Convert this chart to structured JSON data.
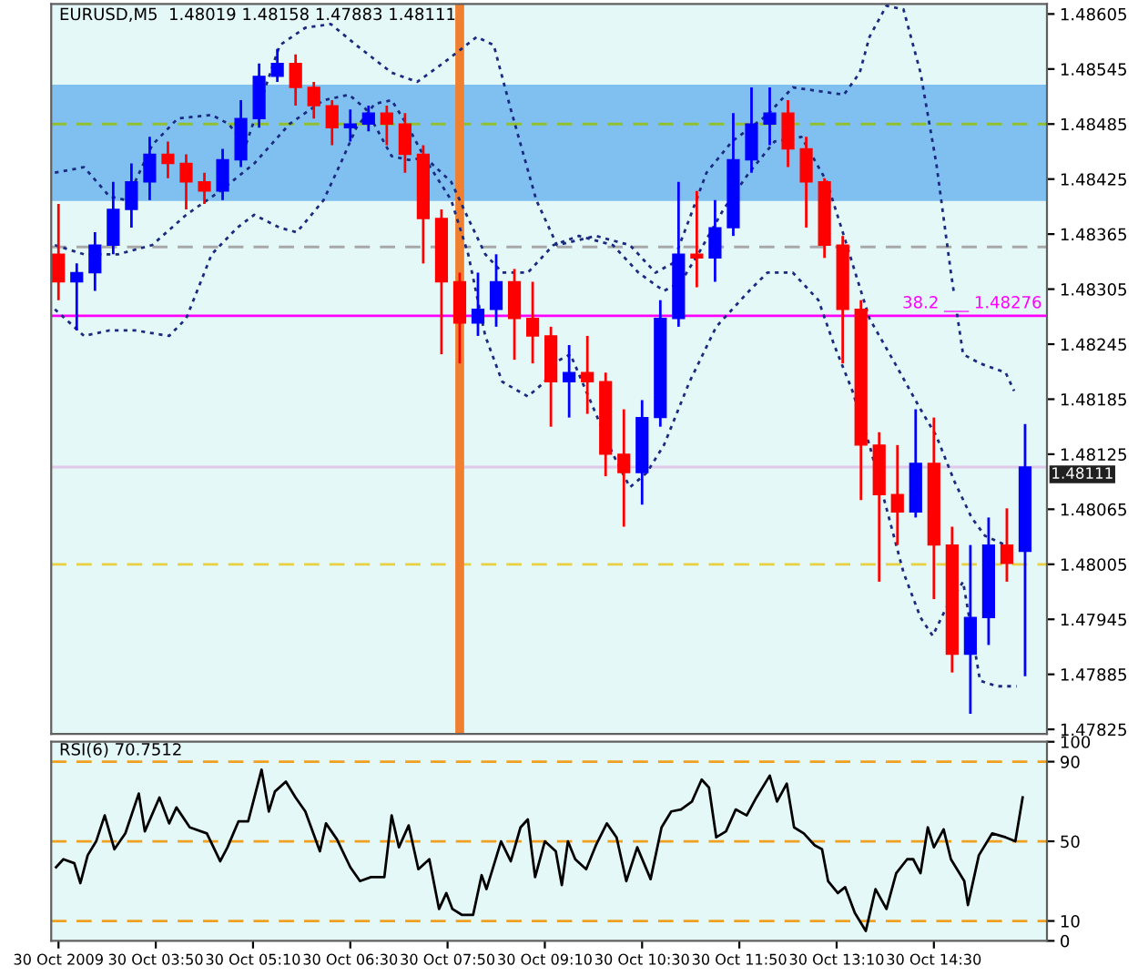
{
  "chart_data": [
    {
      "type": "candlestick",
      "title": "EURUSD,M5  1.48019 1.48158 1.47883 1.48111",
      "x": [
        "2009-10-30T02:30",
        "2009-10-30T02:45",
        "2009-10-30T03:00",
        "2009-10-30T03:15",
        "2009-10-30T03:30",
        "2009-10-30T03:45",
        "2009-10-30T04:00",
        "2009-10-30T04:15",
        "2009-10-30T04:30",
        "2009-10-30T04:45",
        "2009-10-30T05:00",
        "2009-10-30T05:15",
        "2009-10-30T05:30",
        "2009-10-30T05:45",
        "2009-10-30T06:00",
        "2009-10-30T06:15",
        "2009-10-30T06:30",
        "2009-10-30T06:45",
        "2009-10-30T07:00",
        "2009-10-30T07:15",
        "2009-10-30T07:30",
        "2009-10-30T07:45",
        "2009-10-30T08:00",
        "2009-10-30T08:15",
        "2009-10-30T08:30",
        "2009-10-30T08:45",
        "2009-10-30T09:00",
        "2009-10-30T09:15",
        "2009-10-30T09:30",
        "2009-10-30T09:45",
        "2009-10-30T10:00",
        "2009-10-30T10:15",
        "2009-10-30T10:30",
        "2009-10-30T10:45",
        "2009-10-30T11:00",
        "2009-10-30T11:15",
        "2009-10-30T11:30",
        "2009-10-30T11:45",
        "2009-10-30T12:00",
        "2009-10-30T12:15",
        "2009-10-30T12:30",
        "2009-10-30T12:45",
        "2009-10-30T13:00",
        "2009-10-30T13:15",
        "2009-10-30T13:30",
        "2009-10-30T13:45",
        "2009-10-30T14:00",
        "2009-10-30T14:15",
        "2009-10-30T14:30",
        "2009-10-30T14:45",
        "2009-10-30T15:00",
        "2009-10-30T15:15",
        "2009-10-30T15:30",
        "2009-10-30T15:45"
      ],
      "ohlc": [
        [
          1.48343,
          1.48398,
          1.48293,
          1.48313
        ],
        [
          1.48313,
          1.48333,
          1.4826,
          1.48323
        ],
        [
          1.48323,
          1.48367,
          1.48303,
          1.48353
        ],
        [
          1.48353,
          1.48422,
          1.48343,
          1.48392
        ],
        [
          1.48392,
          1.48442,
          1.48372,
          1.48422
        ],
        [
          1.48422,
          1.48471,
          1.48402,
          1.48452
        ],
        [
          1.48452,
          1.48466,
          1.48426,
          1.48442
        ],
        [
          1.48442,
          1.48452,
          1.48392,
          1.48422
        ],
        [
          1.48422,
          1.48432,
          1.48398,
          1.48412
        ],
        [
          1.48412,
          1.48458,
          1.48402,
          1.48446
        ],
        [
          1.48446,
          1.48511,
          1.48438,
          1.48491
        ],
        [
          1.48491,
          1.48551,
          1.48481,
          1.48537
        ],
        [
          1.48537,
          1.48567,
          1.48531,
          1.48551
        ],
        [
          1.48551,
          1.48561,
          1.48505,
          1.48525
        ],
        [
          1.48525,
          1.48531,
          1.48491,
          1.48505
        ],
        [
          1.48505,
          1.48511,
          1.48462,
          1.48481
        ],
        [
          1.48481,
          1.48501,
          1.48466,
          1.48485
        ],
        [
          1.48485,
          1.48505,
          1.48477,
          1.48497
        ],
        [
          1.48497,
          1.48505,
          1.48462,
          1.48485
        ],
        [
          1.48485,
          1.48497,
          1.48432,
          1.48452
        ],
        [
          1.48452,
          1.48462,
          1.48333,
          1.48382
        ],
        [
          1.48382,
          1.48392,
          1.48234,
          1.48313
        ],
        [
          1.48313,
          1.48323,
          1.48224,
          1.48268
        ],
        [
          1.48268,
          1.48323,
          1.48254,
          1.48283
        ],
        [
          1.48283,
          1.48343,
          1.48264,
          1.48313
        ],
        [
          1.48313,
          1.48327,
          1.48228,
          1.48273
        ],
        [
          1.48273,
          1.48313,
          1.48224,
          1.48254
        ],
        [
          1.48254,
          1.48264,
          1.48155,
          1.48204
        ],
        [
          1.48204,
          1.48244,
          1.48165,
          1.48214
        ],
        [
          1.48214,
          1.48254,
          1.48169,
          1.48204
        ],
        [
          1.48204,
          1.48214,
          1.48101,
          1.48125
        ],
        [
          1.48125,
          1.48174,
          1.48046,
          1.48105
        ],
        [
          1.48105,
          1.48184,
          1.4807,
          1.48165
        ],
        [
          1.48165,
          1.48293,
          1.48155,
          1.48273
        ],
        [
          1.48273,
          1.48422,
          1.48264,
          1.48343
        ],
        [
          1.48343,
          1.48412,
          1.48307,
          1.48339
        ],
        [
          1.48339,
          1.48402,
          1.48313,
          1.48372
        ],
        [
          1.48372,
          1.48497,
          1.48363,
          1.48446
        ],
        [
          1.48446,
          1.48525,
          1.48432,
          1.48485
        ],
        [
          1.48485,
          1.48525,
          1.48462,
          1.48497
        ],
        [
          1.48497,
          1.48511,
          1.48438,
          1.48458
        ],
        [
          1.48458,
          1.48471,
          1.48372,
          1.48422
        ],
        [
          1.48422,
          1.48426,
          1.48339,
          1.48353
        ],
        [
          1.48353,
          1.48363,
          1.48224,
          1.48283
        ],
        [
          1.48283,
          1.48293,
          1.48075,
          1.48135
        ],
        [
          1.48135,
          1.48149,
          1.47986,
          1.48081
        ],
        [
          1.48081,
          1.48135,
          1.48026,
          1.48062
        ],
        [
          1.48062,
          1.48174,
          1.48056,
          1.48115
        ],
        [
          1.48115,
          1.48165,
          1.47967,
          1.48026
        ],
        [
          1.48026,
          1.48046,
          1.47887,
          1.47907
        ],
        [
          1.47907,
          1.48026,
          1.47842,
          1.47947
        ],
        [
          1.47947,
          1.48056,
          1.47917,
          1.48026
        ],
        [
          1.48026,
          1.48066,
          1.47986,
          1.48006
        ],
        [
          1.48019,
          1.48158,
          1.47883,
          1.48111
        ]
      ],
      "colors": [
        "#ff0000",
        "#0000ff",
        "#0000ff",
        "#0000ff",
        "#0000ff",
        "#0000ff",
        "#ff0000",
        "#ff0000",
        "#ff0000",
        "#0000ff",
        "#0000ff",
        "#0000ff",
        "#0000ff",
        "#ff0000",
        "#ff0000",
        "#ff0000",
        "#0000ff",
        "#0000ff",
        "#ff0000",
        "#ff0000",
        "#ff0000",
        "#ff0000",
        "#ff0000",
        "#0000ff",
        "#0000ff",
        "#ff0000",
        "#ff0000",
        "#ff0000",
        "#0000ff",
        "#ff0000",
        "#ff0000",
        "#ff0000",
        "#0000ff",
        "#0000ff",
        "#0000ff",
        "#ff0000",
        "#0000ff",
        "#0000ff",
        "#0000ff",
        "#0000ff",
        "#ff0000",
        "#ff0000",
        "#ff0000",
        "#ff0000",
        "#ff0000",
        "#ff0000",
        "#ff0000",
        "#0000ff",
        "#ff0000",
        "#ff0000",
        "#0000ff",
        "#0000ff",
        "#ff0000",
        "#0000ff"
      ],
      "series": [
        {
          "type": "line",
          "color": "#1a2a80",
          "line_style": "dotted",
          "x": [
            "2009-10-30T02:27",
            "2009-10-30T02:51",
            "2009-10-30T03:12",
            "2009-10-30T03:26",
            "2009-10-30T03:47",
            "2009-10-30T04:08",
            "2009-10-30T04:36",
            "2009-10-30T04:50",
            "2009-10-30T05:04",
            "2009-10-30T05:32",
            "2009-10-30T05:53",
            "2009-10-30T06:14",
            "2009-10-30T06:35",
            "2009-10-30T07:04",
            "2009-10-30T07:25",
            "2009-10-30T07:46",
            "2009-10-30T08:14",
            "2009-10-30T08:28",
            "2009-10-30T08:42",
            "2009-10-30T09:03",
            "2009-10-30T09:20",
            "2009-10-30T09:52",
            "2009-10-30T10:20",
            "2009-10-30T10:41",
            "2009-10-30T10:55",
            "2009-10-30T11:09",
            "2009-10-30T11:23",
            "2009-10-30T11:44",
            "2009-10-30T12:13",
            "2009-10-30T12:34",
            "2009-10-30T12:55",
            "2009-10-30T13:16",
            "2009-10-30T13:29",
            "2009-10-30T13:37",
            "2009-10-30T13:51",
            "2009-10-30T14:05",
            "2009-10-30T14:19",
            "2009-10-30T14:32",
            "2009-10-30T14:44",
            "2009-10-30T14:54",
            "2009-10-30T15:08",
            "2009-10-30T15:29",
            "2009-10-30T15:36"
          ],
          "values": [
            1.48432,
            1.48438,
            1.48406,
            1.48402,
            1.48462,
            1.48491,
            1.48495,
            1.48485,
            1.48462,
            1.48571,
            1.4859,
            1.48594,
            1.48571,
            1.48541,
            1.48531,
            1.48551,
            1.4858,
            1.48571,
            1.48501,
            1.48402,
            1.48353,
            1.48363,
            1.48353,
            1.48323,
            1.48333,
            1.48382,
            1.48432,
            1.48466,
            1.48495,
            1.48525,
            1.48521,
            1.48517,
            1.48541,
            1.4858,
            1.48614,
            1.4861,
            1.48541,
            1.48442,
            1.48323,
            1.48234,
            1.48224,
            1.48214,
            1.48194
          ]
        },
        {
          "type": "line",
          "color": "#1a2a80",
          "line_style": "dotted",
          "x": [
            "2009-10-30T02:27",
            "2009-10-30T02:51",
            "2009-10-30T03:19",
            "2009-10-30T03:47",
            "2009-10-30T04:15",
            "2009-10-30T04:43",
            "2009-10-30T05:11",
            "2009-10-30T05:40",
            "2009-10-30T06:08",
            "2009-10-30T06:29",
            "2009-10-30T06:43",
            "2009-10-30T07:04",
            "2009-10-30T07:18",
            "2009-10-30T07:32",
            "2009-10-30T07:53",
            "2009-10-30T08:07",
            "2009-10-30T08:21",
            "2009-10-30T08:35",
            "2009-10-30T08:56",
            "2009-10-30T09:17",
            "2009-10-30T09:38",
            "2009-10-30T10:06",
            "2009-10-30T10:27",
            "2009-10-30T10:48",
            "2009-10-30T11:02",
            "2009-10-30T11:16",
            "2009-10-30T11:37",
            "2009-10-30T11:58",
            "2009-10-30T12:19",
            "2009-10-30T12:41",
            "2009-10-30T13:02",
            "2009-10-30T13:16",
            "2009-10-30T13:37",
            "2009-10-30T13:58",
            "2009-10-30T14:19",
            "2009-10-30T14:32",
            "2009-10-30T14:47",
            "2009-10-30T15:01",
            "2009-10-30T15:12",
            "2009-10-30T15:29"
          ],
          "values": [
            1.48353,
            1.48343,
            1.48343,
            1.48353,
            1.48386,
            1.48412,
            1.48442,
            1.48485,
            1.48511,
            1.48517,
            1.48501,
            1.4845,
            1.48446,
            1.48448,
            1.48422,
            1.48382,
            1.48343,
            1.48323,
            1.48323,
            1.48353,
            1.48363,
            1.48353,
            1.48323,
            1.48303,
            1.48313,
            1.48343,
            1.48392,
            1.48432,
            1.48466,
            1.48471,
            1.48422,
            1.48363,
            1.48273,
            1.48224,
            1.48174,
            1.48145,
            1.48095,
            1.48056,
            1.48036,
            1.48026
          ]
        },
        {
          "type": "line",
          "color": "#1a2a80",
          "line_style": "dotted",
          "x": [
            "2009-10-30T02:27",
            "2009-10-30T02:51",
            "2009-10-30T03:12",
            "2009-10-30T03:33",
            "2009-10-30T04:01",
            "2009-10-30T04:15",
            "2009-10-30T04:36",
            "2009-10-30T04:57",
            "2009-10-30T05:11",
            "2009-10-30T05:32",
            "2009-10-30T05:46",
            "2009-10-30T06:08",
            "2009-10-30T06:22",
            "2009-10-30T06:35",
            "2009-10-30T06:50",
            "2009-10-30T07:04",
            "2009-10-30T07:18",
            "2009-10-30T07:32",
            "2009-10-30T07:53",
            "2009-10-30T08:07",
            "2009-10-30T08:21",
            "2009-10-30T08:35",
            "2009-10-30T08:56",
            "2009-10-30T09:10",
            "2009-10-30T09:17",
            "2009-10-30T09:31",
            "2009-10-30T09:52",
            "2009-10-30T10:06",
            "2009-10-30T10:20",
            "2009-10-30T10:34",
            "2009-10-30T10:48",
            "2009-10-30T11:09",
            "2009-10-30T11:31",
            "2009-10-30T11:58",
            "2009-10-30T12:13",
            "2009-10-30T12:34",
            "2009-10-30T12:55",
            "2009-10-30T13:08",
            "2009-10-30T13:23",
            "2009-10-30T13:37",
            "2009-10-30T13:51",
            "2009-10-30T14:05",
            "2009-10-30T14:19",
            "2009-10-30T14:29",
            "2009-10-30T14:40",
            "2009-10-30T14:54",
            "2009-10-30T15:08",
            "2009-10-30T15:22",
            "2009-10-30T15:38"
          ],
          "values": [
            1.48283,
            1.48254,
            1.4826,
            1.4826,
            1.48254,
            1.48273,
            1.48343,
            1.48372,
            1.48386,
            1.48372,
            1.48367,
            1.48402,
            1.48442,
            1.48481,
            1.48507,
            1.48511,
            1.48481,
            1.48446,
            1.48402,
            1.48343,
            1.48254,
            1.48204,
            1.48188,
            1.48204,
            1.48224,
            1.48234,
            1.48169,
            1.48125,
            1.48089,
            1.48105,
            1.48135,
            1.48204,
            1.48264,
            1.48303,
            1.48323,
            1.48323,
            1.48293,
            1.48244,
            1.48194,
            1.48135,
            1.48066,
            1.47996,
            1.47947,
            1.47927,
            1.47957,
            1.47986,
            1.47878,
            1.47872,
            1.47872
          ]
        }
      ],
      "xlim": [
        "2009-10-30T02:24",
        "2009-10-30T16:03"
      ],
      "ylim": [
        1.4782,
        1.48616
      ],
      "yticks": [
        1.47825,
        1.47885,
        1.47945,
        1.48005,
        1.48065,
        1.48125,
        1.48185,
        1.48245,
        1.48305,
        1.48365,
        1.48425,
        1.48485,
        1.48545,
        1.48605
      ],
      "tick_labels": "y",
      "ref_lines": [
        {
          "axis": "x",
          "value": "2009-10-30T08:00",
          "color": "#f08030",
          "line_style": "solid"
        },
        {
          "axis": "y",
          "value": 1.48485,
          "color": "#90c030",
          "line_style": "dashed"
        },
        {
          "axis": "y",
          "value": 1.48351,
          "color": "#a8a8a8",
          "line_style": "dashed"
        },
        {
          "axis": "y",
          "value": 1.48276,
          "color": "#ff00ff",
          "line_style": "solid"
        },
        {
          "axis": "y",
          "value": 1.48111,
          "color": "#e0c8e8",
          "line_style": "solid",
          "label": "1.48111"
        },
        {
          "axis": "y",
          "value": 1.48005,
          "color": "#e8d040",
          "line_style": "dashed"
        }
      ],
      "bands": [
        {
          "axis": "y",
          "from": 1.48401,
          "to": 1.48528,
          "color": "#80c0f0"
        }
      ],
      "annotations": [
        "38.2 ___ 1.48276"
      ]
    },
    {
      "type": "line",
      "title": "RSI(6) 70.7512",
      "color": "#000000",
      "x": [
        "2009-10-30T02:28",
        "2009-10-30T02:34",
        "2009-10-30T02:43",
        "2009-10-30T02:48",
        "2009-10-30T02:54",
        "2009-10-30T03:01",
        "2009-10-30T03:08",
        "2009-10-30T03:16",
        "2009-10-30T03:25",
        "2009-10-30T03:36",
        "2009-10-30T03:41",
        "2009-10-30T03:53",
        "2009-10-30T04:01",
        "2009-10-30T04:07",
        "2009-10-30T04:18",
        "2009-10-30T04:32",
        "2009-10-30T04:43",
        "2009-10-30T04:49",
        "2009-10-30T04:58",
        "2009-10-30T05:06",
        "2009-10-30T05:17",
        "2009-10-30T05:23",
        "2009-10-30T05:28",
        "2009-10-30T05:37",
        "2009-10-30T05:45",
        "2009-10-30T05:53",
        "2009-10-30T06:05",
        "2009-10-30T06:10",
        "2009-10-30T06:19",
        "2009-10-30T06:30",
        "2009-10-30T06:38",
        "2009-10-30T06:47",
        "2009-10-30T06:58",
        "2009-10-30T07:04",
        "2009-10-30T07:10",
        "2009-10-30T07:18",
        "2009-10-30T07:26",
        "2009-10-30T07:35",
        "2009-10-30T07:43",
        "2009-10-30T07:49",
        "2009-10-30T07:54",
        "2009-10-30T08:02",
        "2009-10-30T08:11",
        "2009-10-30T08:18",
        "2009-10-30T08:22",
        "2009-10-30T08:34",
        "2009-10-30T08:42",
        "2009-10-30T08:50",
        "2009-10-30T08:56",
        "2009-10-30T09:02",
        "2009-10-30T09:10",
        "2009-10-30T09:19",
        "2009-10-30T09:24",
        "2009-10-30T09:29",
        "2009-10-30T09:35",
        "2009-10-30T09:44",
        "2009-10-30T09:52",
        "2009-10-30T10:01",
        "2009-10-30T10:09",
        "2009-10-30T10:17",
        "2009-10-30T10:26",
        "2009-10-30T10:37",
        "2009-10-30T10:46",
        "2009-10-30T10:54",
        "2009-10-30T11:02",
        "2009-10-30T11:11",
        "2009-10-30T11:19",
        "2009-10-30T11:25",
        "2009-10-30T11:31",
        "2009-10-30T11:39",
        "2009-10-30T11:47",
        "2009-10-30T11:56",
        "2009-10-30T12:04",
        "2009-10-30T12:15",
        "2009-10-30T12:21",
        "2009-10-30T12:29",
        "2009-10-30T12:35",
        "2009-10-30T12:43",
        "2009-10-30T12:52",
        "2009-10-30T12:58",
        "2009-10-30T13:03",
        "2009-10-30T13:11",
        "2009-10-30T13:17",
        "2009-10-30T13:25",
        "2009-10-30T13:34",
        "2009-10-30T13:42",
        "2009-10-30T13:51",
        "2009-10-30T13:59",
        "2009-10-30T14:08",
        "2009-10-30T14:13",
        "2009-10-30T14:19",
        "2009-10-30T14:25",
        "2009-10-30T14:30",
        "2009-10-30T14:38",
        "2009-10-30T14:44",
        "2009-10-30T14:55",
        "2009-10-30T14:58",
        "2009-10-30T15:07",
        "2009-10-30T15:18",
        "2009-10-30T15:29",
        "2009-10-30T15:37",
        "2009-10-30T15:43"
      ],
      "values": [
        37,
        41,
        39,
        29,
        43,
        50,
        63,
        46,
        54,
        74,
        55,
        72,
        59,
        67,
        57,
        54,
        40,
        47,
        60,
        60,
        86,
        65,
        75,
        80,
        72,
        65,
        45,
        59,
        51,
        37,
        30,
        32,
        32,
        63,
        47,
        58,
        36,
        41,
        16,
        24,
        16,
        13,
        13,
        33,
        26,
        50,
        40,
        57,
        61,
        32,
        50,
        45,
        28,
        50,
        41,
        36,
        48,
        59,
        52,
        30,
        47,
        31,
        57,
        65,
        66,
        70,
        81,
        77,
        52,
        55,
        66,
        63,
        72,
        83,
        70,
        79,
        57,
        54,
        48,
        46,
        30,
        24,
        27,
        14,
        5,
        26,
        16,
        34,
        41,
        41,
        34,
        57,
        47,
        56,
        41,
        30,
        18,
        43,
        54,
        52,
        50,
        72
      ],
      "xlim": [
        "2009-10-30T02:24",
        "2009-10-30T16:03"
      ],
      "ylim": [
        0,
        100
      ],
      "yticks": [
        0,
        10,
        50,
        90,
        100
      ],
      "xticks": [
        {
          "value": "2009-10-30T02:30",
          "label": "30 Oct 2009"
        },
        {
          "value": "2009-10-30T03:50",
          "label": "30 Oct 03:50"
        },
        {
          "value": "2009-10-30T05:10",
          "label": "30 Oct 05:10"
        },
        {
          "value": "2009-10-30T06:30",
          "label": "30 Oct 06:30"
        },
        {
          "value": "2009-10-30T07:50",
          "label": "30 Oct 07:50"
        },
        {
          "value": "2009-10-30T09:10",
          "label": "30 Oct 09:10"
        },
        {
          "value": "2009-10-30T10:30",
          "label": "30 Oct 10:30"
        },
        {
          "value": "2009-10-30T11:50",
          "label": "30 Oct 11:50"
        },
        {
          "value": "2009-10-30T13:10",
          "label": "30 Oct 13:10"
        },
        {
          "value": "2009-10-30T14:30",
          "label": "30 Oct 14:30"
        }
      ],
      "ref_lines": [
        {
          "axis": "y",
          "value": 90,
          "color": "#f0a020",
          "line_style": "dashed"
        },
        {
          "axis": "y",
          "value": 50,
          "color": "#f0a020",
          "line_style": "dashed"
        },
        {
          "axis": "y",
          "value": 10,
          "color": "#f0a020",
          "line_style": "dashed"
        }
      ]
    }
  ]
}
